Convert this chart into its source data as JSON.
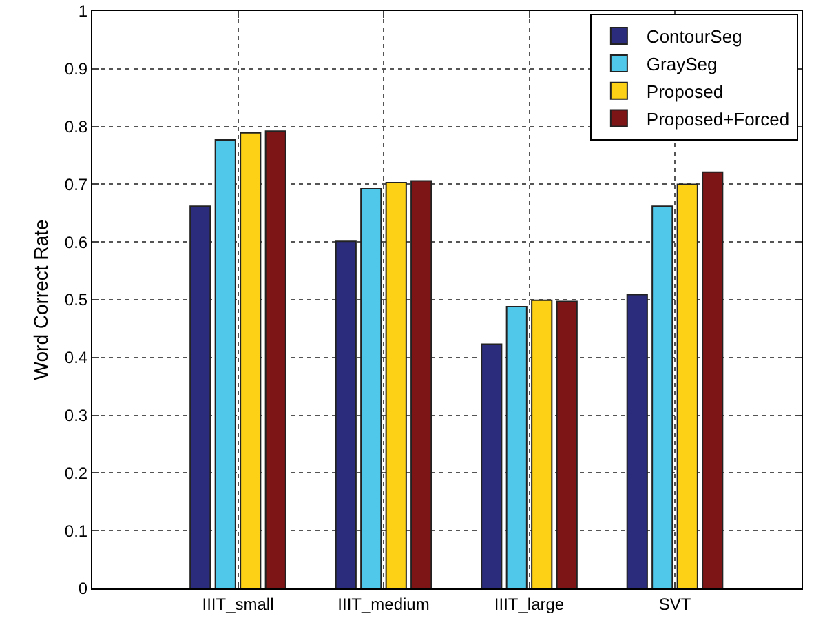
{
  "chart_data": {
    "type": "bar",
    "ylabel": "Word Correct Rate",
    "categories": [
      "IIIT_small",
      "IIIT_medium",
      "IIIT_large",
      "SVT"
    ],
    "series": [
      {
        "name": "ContourSeg",
        "color": "#2b2d7c",
        "values": [
          0.662,
          0.601,
          0.423,
          0.509
        ]
      },
      {
        "name": "GraySeg",
        "color": "#50c8ea",
        "values": [
          0.777,
          0.692,
          0.488,
          0.662
        ]
      },
      {
        "name": "Proposed",
        "color": "#fcd116",
        "values": [
          0.789,
          0.703,
          0.499,
          0.7
        ]
      },
      {
        "name": "Proposed+Forced",
        "color": "#7d1416",
        "values": [
          0.792,
          0.706,
          0.497,
          0.721
        ]
      }
    ],
    "ylim": [
      0,
      1
    ],
    "yticks": [
      0,
      0.1,
      0.2,
      0.3,
      0.4,
      0.5,
      0.6,
      0.7,
      0.8,
      0.9,
      1
    ],
    "grid": true,
    "legend": "top right"
  }
}
